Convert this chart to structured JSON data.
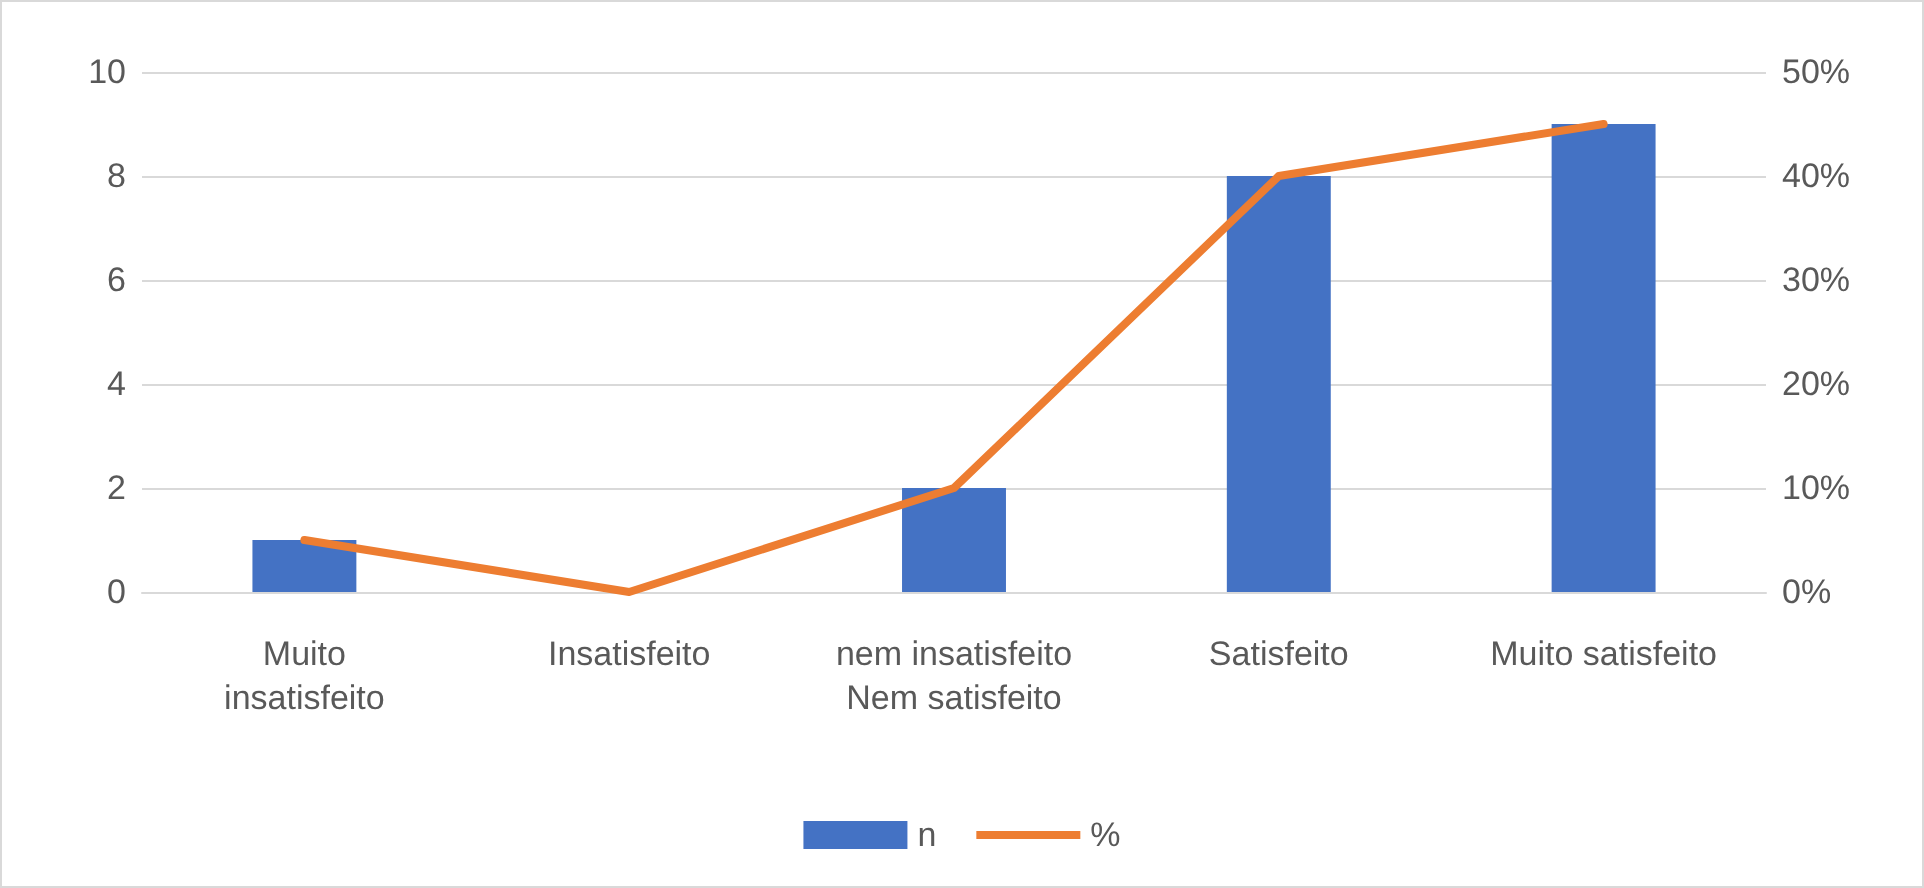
{
  "chart_data": {
    "type": "bar",
    "categories": [
      "Muito\ninsatisfeito",
      "Insatisfeito",
      "nem insatisfeito\nNem satisfeito",
      "Satisfeito",
      "Muito satisfeito"
    ],
    "series": [
      {
        "name": "n",
        "color": "#4472c4",
        "values": [
          1,
          0,
          2,
          8,
          9
        ]
      },
      {
        "name": "%",
        "type": "line",
        "axis": "y2",
        "color": "#ed7d31",
        "values": [
          5,
          0,
          10,
          40,
          45
        ],
        "marker": "none"
      }
    ],
    "ylim": [
      0,
      10
    ],
    "yticks": [
      0,
      2,
      4,
      6,
      8,
      10
    ],
    "y2lim": [
      0,
      50
    ],
    "y2ticks": [
      {
        "value": 0,
        "label": "0%"
      },
      {
        "value": 10,
        "label": "10%"
      },
      {
        "value": 20,
        "label": "20%"
      },
      {
        "value": 30,
        "label": "30%"
      },
      {
        "value": 40,
        "label": "40%"
      },
      {
        "value": 50,
        "label": "50%"
      }
    ],
    "grid": "y",
    "legend": "bottom"
  }
}
